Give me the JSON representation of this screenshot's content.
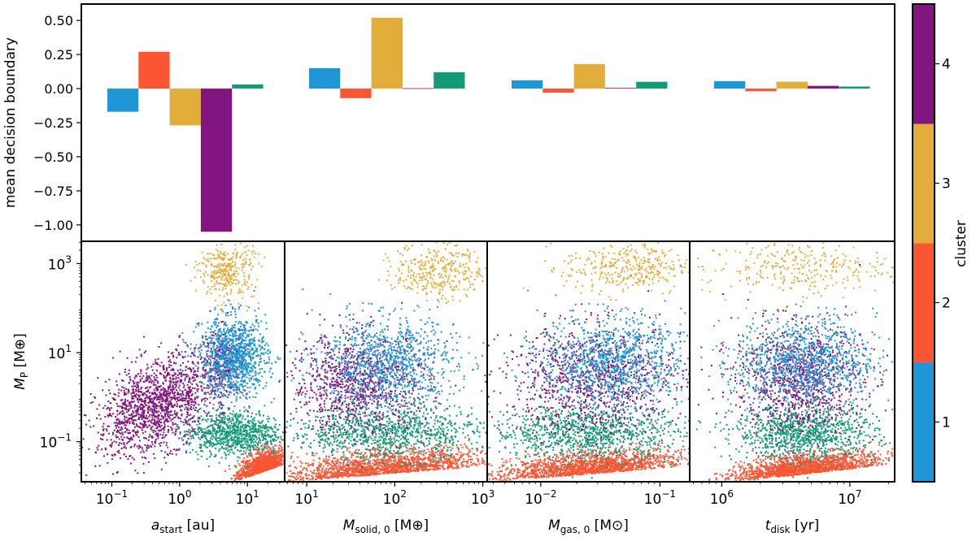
{
  "chart_data": [
    {
      "type": "bar",
      "ylabel": "mean decision boundary",
      "ylim": [
        -1.12,
        0.62
      ],
      "yticks": [
        0.5,
        0.25,
        0.0,
        -0.25,
        -0.5,
        -0.75,
        -1.0
      ],
      "ytick_labels": [
        "0.50",
        "0.25",
        "0.00",
        "−0.25",
        "−0.50",
        "−0.75",
        "−1.00"
      ],
      "groups": [
        "a_start",
        "M_solid,0",
        "M_gas,0",
        "t_disk"
      ],
      "series": [
        {
          "name": "cluster 1",
          "values": [
            -0.17,
            0.15,
            0.06,
            0.055
          ]
        },
        {
          "name": "cluster 2",
          "values": [
            0.27,
            -0.07,
            -0.03,
            -0.02
          ]
        },
        {
          "name": "cluster 3",
          "values": [
            -0.27,
            0.52,
            0.18,
            0.05
          ]
        },
        {
          "name": "cluster 4",
          "values": [
            -1.05,
            0.003,
            0.005,
            0.02
          ]
        },
        {
          "name": "cluster 5",
          "values": [
            0.03,
            0.12,
            0.05,
            0.015
          ]
        }
      ]
    },
    {
      "type": "scatter",
      "ylabel_main": "M",
      "ylabel_sub": "P",
      "ylabel_unit": "[M⊕]",
      "ylim_log10": [
        -1.9,
        3.5
      ],
      "y_major_ticks": [
        {
          "base": "10",
          "exp": "3",
          "value_log10": 3
        },
        {
          "base": "10",
          "exp": "1",
          "value_log10": 1
        },
        {
          "base": "10",
          "exp": "−1",
          "value_log10": -1
        }
      ],
      "panels": [
        {
          "name": "a_start",
          "xlabel_main": "a",
          "xlabel_sub": "start",
          "xlabel_unit": "[au]",
          "xlim_log10": [
            -1.45,
            1.55
          ],
          "x_major_ticks": [
            {
              "base": "10",
              "exp": "−1",
              "value_log10": -1
            },
            {
              "base": "10",
              "exp": "0",
              "value_log10": 0
            },
            {
              "base": "10",
              "exp": "1",
              "value_log10": 1
            }
          ],
          "clusters": [
            {
              "cluster": 4,
              "x_log10": [
                -1.2,
                0.5
              ],
              "y_log10": [
                -1.2,
                0.8
              ],
              "n": 1500,
              "note": "elongated rising cloud"
            },
            {
              "cluster": 4,
              "x_log10": [
                0.3,
                1.0
              ],
              "y_log10": [
                0.0,
                1.6
              ],
              "n": 300
            },
            {
              "cluster": 1,
              "x_log10": [
                0.3,
                1.3
              ],
              "y_log10": [
                0.0,
                1.8
              ],
              "n": 1100
            },
            {
              "cluster": 3,
              "x_log10": [
                0.3,
                1.1
              ],
              "y_log10": [
                2.2,
                3.5
              ],
              "n": 350
            },
            {
              "cluster": 5,
              "x_log10": [
                0.1,
                1.5
              ],
              "y_log10": [
                -1.3,
                -0.3
              ],
              "n": 900
            },
            {
              "cluster": 2,
              "x_log10": [
                0.9,
                1.55
              ],
              "y_log10": [
                -1.85,
                -0.9
              ],
              "n": 1200
            }
          ]
        },
        {
          "name": "M_solid,0",
          "xlabel_main": "M",
          "xlabel_sub": "solid, 0",
          "xlabel_unit": "[M⊕]",
          "xlim_log10": [
            0.75,
            3.05
          ],
          "x_major_ticks": [
            {
              "base": "10",
              "exp": "1",
              "value_log10": 1
            },
            {
              "base": "10",
              "exp": "2",
              "value_log10": 2
            },
            {
              "base": "10",
              "exp": "3",
              "value_log10": 3
            }
          ],
          "clusters": [
            {
              "cluster": 2,
              "x_log10": [
                0.8,
                3.0
              ],
              "y_log10": [
                -1.9,
                -0.8
              ],
              "n": 1600
            },
            {
              "cluster": 5,
              "x_log10": [
                0.8,
                3.0
              ],
              "y_log10": [
                -1.4,
                -0.2
              ],
              "n": 1000
            },
            {
              "cluster": 4,
              "x_log10": [
                0.8,
                2.4
              ],
              "y_log10": [
                -0.8,
                1.4
              ],
              "n": 1000
            },
            {
              "cluster": 1,
              "x_log10": [
                1.1,
                2.7
              ],
              "y_log10": [
                -0.3,
                1.8
              ],
              "n": 1000
            },
            {
              "cluster": 3,
              "x_log10": [
                2.0,
                3.0
              ],
              "y_log10": [
                2.2,
                3.5
              ],
              "n": 350
            }
          ]
        },
        {
          "name": "M_gas,0",
          "xlabel_main": "M",
          "xlabel_sub": "gas, 0",
          "xlabel_unit": "[M⊙]",
          "xlim_log10": [
            -2.45,
            -0.75
          ],
          "x_major_ticks": [
            {
              "base": "10",
              "exp": "−2",
              "value_log10": -2
            },
            {
              "base": "10",
              "exp": "−1",
              "value_log10": -1
            }
          ],
          "clusters": [
            {
              "cluster": 2,
              "x_log10": [
                -2.4,
                -0.8
              ],
              "y_log10": [
                -1.9,
                -0.9
              ],
              "n": 1600
            },
            {
              "cluster": 5,
              "x_log10": [
                -2.4,
                -0.8
              ],
              "y_log10": [
                -1.4,
                -0.2
              ],
              "n": 1000
            },
            {
              "cluster": 4,
              "x_log10": [
                -2.3,
                -0.8
              ],
              "y_log10": [
                -0.8,
                1.6
              ],
              "n": 1000
            },
            {
              "cluster": 1,
              "x_log10": [
                -2.0,
                -0.8
              ],
              "y_log10": [
                -0.2,
                1.8
              ],
              "n": 1000
            },
            {
              "cluster": 3,
              "x_log10": [
                -1.8,
                -0.75
              ],
              "y_log10": [
                2.3,
                3.5
              ],
              "n": 350
            }
          ]
        },
        {
          "name": "t_disk",
          "xlabel_main": "t",
          "xlabel_sub": "disk",
          "xlabel_unit": "[yr]",
          "xlim_log10": [
            5.75,
            7.35
          ],
          "x_major_ticks": [
            {
              "base": "10",
              "exp": "6",
              "value_log10": 6
            },
            {
              "base": "10",
              "exp": "7",
              "value_log10": 7
            }
          ],
          "clusters": [
            {
              "cluster": 2,
              "x_log10": [
                6.1,
                7.2
              ],
              "y_log10": [
                -1.9,
                -1.0
              ],
              "n": 1600
            },
            {
              "cluster": 5,
              "x_log10": [
                6.1,
                7.2
              ],
              "y_log10": [
                -1.4,
                -0.2
              ],
              "n": 1000
            },
            {
              "cluster": 4,
              "x_log10": [
                6.1,
                7.1
              ],
              "y_log10": [
                -0.8,
                1.6
              ],
              "n": 1000
            },
            {
              "cluster": 1,
              "x_log10": [
                6.1,
                7.2
              ],
              "y_log10": [
                -0.2,
                1.8
              ],
              "n": 1000
            },
            {
              "cluster": 3,
              "x_log10": [
                5.85,
                7.3
              ],
              "y_log10": [
                2.3,
                3.5
              ],
              "n": 300
            }
          ]
        }
      ]
    }
  ],
  "colorbar": {
    "label": "cluster",
    "ticks": [
      "1",
      "2",
      "3",
      "4"
    ],
    "segments": [
      {
        "cluster": 1,
        "color": "#1f96d6"
      },
      {
        "cluster": 2,
        "color": "#fb5634"
      },
      {
        "cluster": 3,
        "color": "#e3ad3b"
      },
      {
        "cluster": 4,
        "color": "#82157f"
      }
    ]
  },
  "colors": {
    "cluster 1": "#1f96d6",
    "cluster 2": "#fb5634",
    "cluster 3": "#e3ad3b",
    "cluster 4": "#82157f",
    "cluster 5": "#149a76"
  }
}
